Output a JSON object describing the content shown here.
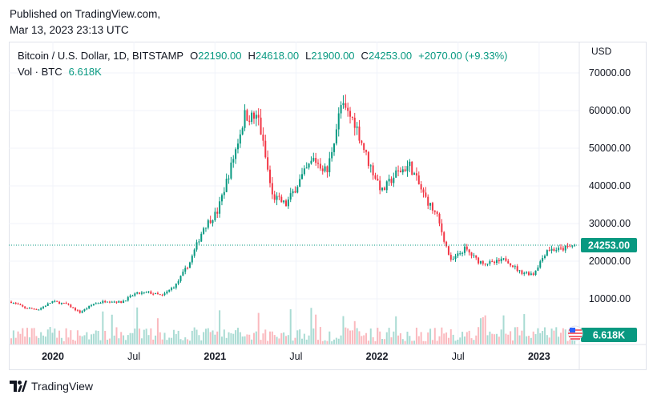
{
  "publish": {
    "line1": "Published on TradingView.com,",
    "line2": "Mar 13, 2023 23:13 UTC"
  },
  "legend": {
    "symbol": "Bitcoin / U.S. Dollar, 1D, BITSTAMP",
    "o_label": "O",
    "o_value": "22190.00",
    "h_label": "H",
    "h_value": "24618.00",
    "l_label": "L",
    "l_value": "21900.00",
    "c_label": "C",
    "c_value": "24253.00",
    "change": "+2070.00 (+9.33%)",
    "vol_label": "Vol · BTC",
    "vol_value": "6.618K"
  },
  "currency": "USD",
  "footer": {
    "brand": "TradingView"
  },
  "colors": {
    "up": "#089981",
    "down": "#f23645",
    "last_price_bg": "#089981",
    "grid": "#f0f3fa"
  },
  "icons": {
    "flag": "us-flag-icon",
    "logo": "tradingview-logo-icon"
  },
  "chart_data": {
    "type": "candlestick",
    "title": "Bitcoin / U.S. Dollar, 1D, BITSTAMP",
    "price_axis": {
      "ticks": [
        "10000.00",
        "20000.00",
        "30000.00",
        "40000.00",
        "50000.00",
        "60000.00",
        "70000.00"
      ],
      "unit": "USD"
    },
    "time_axis": {
      "ticks": [
        "2020",
        "Jul",
        "2021",
        "Jul",
        "2022",
        "Jul",
        "2023"
      ]
    },
    "last_price": "24253.00",
    "last_volume": "6.618K",
    "x": [
      "2019-10",
      "2019-11",
      "2019-12",
      "2020-01",
      "2020-02",
      "2020-03",
      "2020-04",
      "2020-05",
      "2020-06",
      "2020-07",
      "2020-08",
      "2020-09",
      "2020-10",
      "2020-11",
      "2020-12",
      "2021-01",
      "2021-02",
      "2021-03",
      "2021-04",
      "2021-05",
      "2021-06",
      "2021-07",
      "2021-08",
      "2021-09",
      "2021-10",
      "2021-11",
      "2021-12",
      "2022-01",
      "2022-02",
      "2022-03",
      "2022-04",
      "2022-05",
      "2022-06",
      "2022-07",
      "2022-08",
      "2022-09",
      "2022-10",
      "2022-11",
      "2022-12",
      "2023-01",
      "2023-02",
      "2023-03"
    ],
    "close": [
      9200,
      7600,
      7200,
      9300,
      8600,
      6400,
      8700,
      9500,
      9100,
      11300,
      11700,
      10800,
      13800,
      19700,
      29000,
      33100,
      45200,
      58800,
      57700,
      37300,
      35000,
      41500,
      47100,
      43800,
      61300,
      57000,
      46300,
      38500,
      43200,
      45500,
      37700,
      31800,
      19900,
      23300,
      20000,
      19400,
      20500,
      17200,
      16600,
      23100,
      23100,
      24253
    ],
    "volume_scale": "relative"
  }
}
